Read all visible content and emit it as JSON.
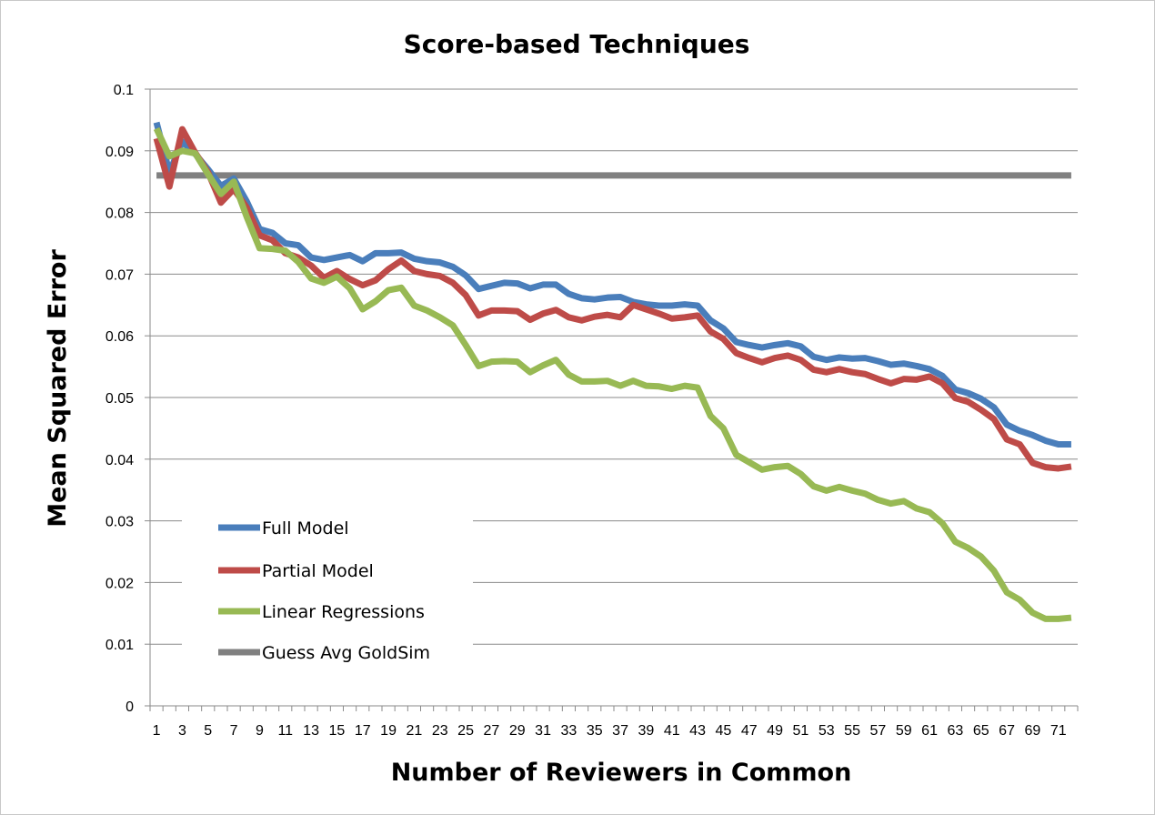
{
  "chart_data": {
    "type": "line",
    "title": "Score-based Techniques",
    "xlabel": "Number of Reviewers in Common",
    "ylabel": "Mean Squared Error",
    "ylim": [
      0,
      0.1
    ],
    "y_ticks": [
      "0",
      "0.01",
      "0.02",
      "0.03",
      "0.04",
      "0.05",
      "0.06",
      "0.07",
      "0.08",
      "0.09",
      "0.1"
    ],
    "x_tick_labels": [
      "1",
      "3",
      "5",
      "7",
      "9",
      "11",
      "13",
      "15",
      "17",
      "19",
      "21",
      "23",
      "25",
      "27",
      "29",
      "31",
      "33",
      "35",
      "37",
      "39",
      "41",
      "43",
      "45",
      "47",
      "49",
      "51",
      "53",
      "55",
      "57",
      "59",
      "61",
      "63",
      "65",
      "67",
      "69",
      "71"
    ],
    "grid": true,
    "legend_position": "bottom-left",
    "x": [
      1,
      2,
      3,
      4,
      5,
      6,
      7,
      8,
      9,
      10,
      11,
      12,
      13,
      14,
      15,
      16,
      17,
      18,
      19,
      20,
      21,
      22,
      23,
      24,
      25,
      26,
      27,
      28,
      29,
      30,
      31,
      32,
      33,
      34,
      35,
      36,
      37,
      38,
      39,
      40,
      41,
      42,
      43,
      44,
      45,
      46,
      47,
      48,
      49,
      50,
      51,
      52,
      53,
      54,
      55,
      56,
      57,
      58,
      59,
      60,
      61,
      62,
      63,
      64,
      65,
      66,
      67,
      68,
      69,
      70,
      71,
      72
    ],
    "series": [
      {
        "name": "Full Model",
        "color": "#4a7ebb",
        "values": [
          0.0946,
          0.0865,
          0.0915,
          0.0895,
          0.087,
          0.0843,
          0.0855,
          0.0818,
          0.0773,
          0.0767,
          0.075,
          0.0747,
          0.0727,
          0.0723,
          0.0727,
          0.0731,
          0.0721,
          0.0734,
          0.0734,
          0.0735,
          0.0725,
          0.0721,
          0.0719,
          0.0712,
          0.0698,
          0.0676,
          0.0681,
          0.0686,
          0.0685,
          0.0677,
          0.0683,
          0.0683,
          0.0668,
          0.0661,
          0.0659,
          0.0662,
          0.0663,
          0.0655,
          0.0651,
          0.0649,
          0.0649,
          0.0651,
          0.0649,
          0.0625,
          0.0612,
          0.059,
          0.0585,
          0.0581,
          0.0585,
          0.0588,
          0.0583,
          0.0566,
          0.0561,
          0.0565,
          0.0563,
          0.0564,
          0.0559,
          0.0553,
          0.0555,
          0.0551,
          0.0546,
          0.0535,
          0.0513,
          0.0507,
          0.0498,
          0.0484,
          0.0456,
          0.0446,
          0.0439,
          0.043,
          0.0424,
          0.0424
        ]
      },
      {
        "name": "Partial Model",
        "color": "#be4b48",
        "values": [
          0.092,
          0.0842,
          0.0935,
          0.0897,
          0.0865,
          0.0816,
          0.0838,
          0.0808,
          0.0763,
          0.0755,
          0.0734,
          0.0727,
          0.0714,
          0.0694,
          0.0705,
          0.0692,
          0.0682,
          0.069,
          0.0708,
          0.0722,
          0.0705,
          0.07,
          0.0697,
          0.0686,
          0.0666,
          0.0633,
          0.0641,
          0.0641,
          0.064,
          0.0626,
          0.0636,
          0.0642,
          0.063,
          0.0625,
          0.0631,
          0.0634,
          0.063,
          0.065,
          0.0643,
          0.0636,
          0.0628,
          0.063,
          0.0633,
          0.0607,
          0.0595,
          0.0572,
          0.0564,
          0.0557,
          0.0564,
          0.0568,
          0.0561,
          0.0545,
          0.0541,
          0.0546,
          0.0541,
          0.0538,
          0.053,
          0.0523,
          0.053,
          0.0529,
          0.0534,
          0.0523,
          0.0499,
          0.0493,
          0.048,
          0.0465,
          0.0432,
          0.0424,
          0.0394,
          0.0387,
          0.0385,
          0.0388
        ]
      },
      {
        "name": "Linear Regressions",
        "color": "#98b954",
        "values": [
          0.0936,
          0.0891,
          0.09,
          0.0896,
          0.0862,
          0.083,
          0.085,
          0.0793,
          0.0742,
          0.0741,
          0.0738,
          0.072,
          0.0693,
          0.0686,
          0.0696,
          0.0677,
          0.0643,
          0.0656,
          0.0674,
          0.0678,
          0.0649,
          0.0641,
          0.063,
          0.0617,
          0.0585,
          0.0551,
          0.0558,
          0.0559,
          0.0558,
          0.0541,
          0.0552,
          0.0561,
          0.0537,
          0.0526,
          0.0526,
          0.0527,
          0.0519,
          0.0527,
          0.0519,
          0.0518,
          0.0514,
          0.0519,
          0.0516,
          0.047,
          0.045,
          0.0407,
          0.0395,
          0.0383,
          0.0387,
          0.0389,
          0.0376,
          0.0356,
          0.0349,
          0.0355,
          0.0349,
          0.0344,
          0.0334,
          0.0328,
          0.0332,
          0.032,
          0.0314,
          0.0296,
          0.0266,
          0.0256,
          0.0242,
          0.0219,
          0.0184,
          0.0172,
          0.0151,
          0.0141,
          0.0141,
          0.0143
        ]
      },
      {
        "name": "Guess Avg GoldSim",
        "color": "#808080",
        "values": [
          0.086,
          0.086,
          0.086,
          0.086,
          0.086,
          0.086,
          0.086,
          0.086,
          0.086,
          0.086,
          0.086,
          0.086,
          0.086,
          0.086,
          0.086,
          0.086,
          0.086,
          0.086,
          0.086,
          0.086,
          0.086,
          0.086,
          0.086,
          0.086,
          0.086,
          0.086,
          0.086,
          0.086,
          0.086,
          0.086,
          0.086,
          0.086,
          0.086,
          0.086,
          0.086,
          0.086,
          0.086,
          0.086,
          0.086,
          0.086,
          0.086,
          0.086,
          0.086,
          0.086,
          0.086,
          0.086,
          0.086,
          0.086,
          0.086,
          0.086,
          0.086,
          0.086,
          0.086,
          0.086,
          0.086,
          0.086,
          0.086,
          0.086,
          0.086,
          0.086,
          0.086,
          0.086,
          0.086,
          0.086,
          0.086,
          0.086,
          0.086,
          0.086,
          0.086,
          0.086,
          0.086,
          0.086
        ]
      }
    ]
  }
}
